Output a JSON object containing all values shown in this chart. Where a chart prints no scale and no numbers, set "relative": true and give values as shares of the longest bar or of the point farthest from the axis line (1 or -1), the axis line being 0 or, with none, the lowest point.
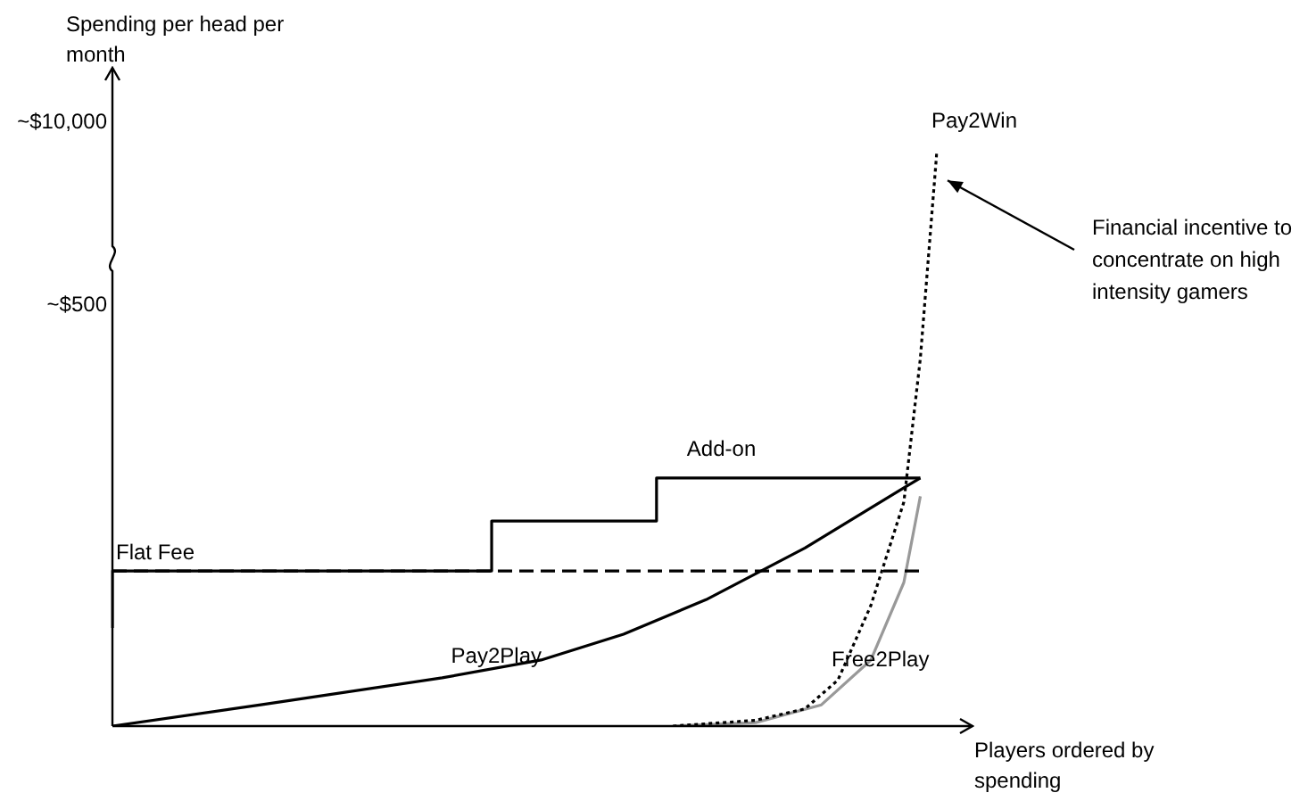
{
  "chart_data": {
    "type": "line",
    "relative": true,
    "xlabel": "Players ordered by spending",
    "ylabel": "Spending per head per month",
    "marker": "none",
    "legend": false,
    "categories": [
      null,
      null,
      null,
      null,
      null,
      null,
      null,
      null,
      null,
      null,
      null,
      null,
      null,
      null,
      null,
      null,
      null,
      null,
      null,
      null,
      null,
      null,
      null,
      null,
      null,
      null,
      null,
      null,
      null,
      null,
      null,
      null,
      null,
      null,
      null,
      null,
      null,
      null,
      null,
      null,
      null,
      null,
      null,
      null,
      null,
      null,
      null,
      null,
      null,
      null,
      null
    ],
    "annotations": [
      "~$10,000",
      "~$500",
      "Financial incentive to concentrate on high intensity gamers"
    ],
    "series": [
      {
        "name": "Flat Fee",
        "type": "line",
        "line_style": "dashed",
        "color": "#000000",
        "values": [
          0.27,
          null,
          null,
          null,
          null,
          null,
          null,
          null,
          null,
          null,
          null,
          null,
          null,
          null,
          null,
          null,
          null,
          null,
          null,
          null,
          null,
          null,
          null,
          null,
          null,
          null,
          null,
          null,
          null,
          null,
          null,
          null,
          null,
          null,
          null,
          null,
          null,
          null,
          null,
          null,
          null,
          null,
          null,
          null,
          null,
          null,
          null,
          null,
          null,
          0.27,
          null
        ]
      },
      {
        "name": "Add-on",
        "type": "step",
        "color": "#000000",
        "values": [
          0.171,
          null,
          null,
          null,
          null,
          null,
          null,
          null,
          null,
          null,
          null,
          null,
          null,
          null,
          null,
          null,
          null,
          null,
          null,
          null,
          null,
          null,
          null,
          0.27,
          null,
          null,
          null,
          null,
          null,
          null,
          null,
          null,
          null,
          0.357,
          null,
          null,
          null,
          null,
          null,
          null,
          null,
          null,
          0.432,
          null,
          null,
          null,
          null,
          null,
          null,
          0.432,
          null
        ]
      },
      {
        "name": "Pay2Play",
        "type": "line",
        "color": "#000000",
        "values": [
          0,
          null,
          null,
          null,
          null,
          null,
          null,
          null,
          null,
          0.037,
          null,
          null,
          null,
          null,
          null,
          null,
          null,
          null,
          null,
          null,
          0.084,
          null,
          null,
          null,
          null,
          null,
          0.115,
          null,
          null,
          null,
          null,
          0.16,
          null,
          null,
          null,
          null,
          0.22,
          null,
          null,
          null,
          null,
          null,
          0.31,
          null,
          null,
          null,
          0.38,
          null,
          null,
          0.432,
          null
        ]
      },
      {
        "name": "Pay2Win",
        "type": "line",
        "line_style": "dotted",
        "color": "#000000",
        "values": [
          null,
          null,
          null,
          null,
          null,
          null,
          null,
          null,
          null,
          null,
          null,
          null,
          null,
          null,
          null,
          null,
          null,
          null,
          null,
          null,
          null,
          null,
          null,
          null,
          null,
          null,
          null,
          null,
          null,
          null,
          null,
          null,
          null,
          null,
          0,
          null,
          null,
          null,
          null,
          0.01,
          null,
          null,
          0.03,
          null,
          0.08,
          null,
          0.21,
          null,
          0.39,
          0.64,
          1
        ]
      },
      {
        "name": "Free2Play",
        "type": "line",
        "color": "#999999",
        "values": [
          null,
          null,
          null,
          null,
          null,
          null,
          null,
          null,
          null,
          null,
          null,
          null,
          null,
          null,
          null,
          null,
          null,
          null,
          null,
          null,
          null,
          null,
          null,
          null,
          null,
          null,
          null,
          null,
          null,
          null,
          null,
          null,
          null,
          null,
          0,
          null,
          null,
          null,
          null,
          0.006,
          null,
          null,
          null,
          0.037,
          null,
          null,
          0.115,
          null,
          0.25,
          0.4,
          null
        ]
      }
    ]
  }
}
